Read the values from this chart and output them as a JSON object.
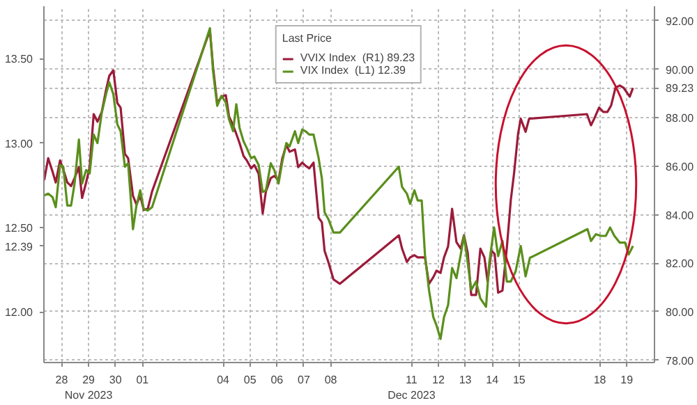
{
  "chart_data": {
    "type": "line",
    "legend_title": "Last Price",
    "legend": "top",
    "grid": true,
    "line_style": "solid",
    "marker": "none",
    "xlim": [
      "2023-11-27T20:10",
      "2023-12-20T12:43"
    ],
    "xticks": [
      {
        "value": "2023-11-28T12:00",
        "label": "28"
      },
      {
        "value": "2023-11-29T12:00",
        "label": "29\nNov 2023"
      },
      {
        "value": "2023-11-30T12:00",
        "label": "30"
      },
      {
        "value": "2023-12-01T12:00",
        "label": "01"
      },
      {
        "value": "2023-12-04T12:00",
        "label": "04"
      },
      {
        "value": "2023-12-05T12:00",
        "label": "05"
      },
      {
        "value": "2023-12-06T12:00",
        "label": "06"
      },
      {
        "value": "2023-12-07T12:00",
        "label": "07"
      },
      {
        "value": "2023-12-08T12:00",
        "label": "08"
      },
      {
        "value": "2023-12-11T12:00",
        "label": "11\nDec 2023"
      },
      {
        "value": "2023-12-12T12:00",
        "label": "12"
      },
      {
        "value": "2023-12-13T12:00",
        "label": "13"
      },
      {
        "value": "2023-12-14T12:00",
        "label": "14"
      },
      {
        "value": "2023-12-15T12:00",
        "label": "15"
      },
      {
        "value": "2023-12-18T12:00",
        "label": "18"
      },
      {
        "value": "2023-12-19T12:00",
        "label": "19"
      }
    ],
    "ylim": [
      11.7,
      13.81
    ],
    "yticks": [
      {
        "value": 12,
        "label": "12.00"
      },
      {
        "value": 12.39,
        "label": "12.39"
      },
      {
        "value": 12.5,
        "label": "12.50"
      },
      {
        "value": 13,
        "label": "13.00"
      },
      {
        "value": 13.5,
        "label": "13.50"
      }
    ],
    "y2lim": [
      77.9,
      92.6
    ],
    "y2ticks": [
      {
        "value": 78,
        "label": "78.00"
      },
      {
        "value": 80,
        "label": "80.00"
      },
      {
        "value": 82,
        "label": "82.00"
      },
      {
        "value": 84,
        "label": "84.00"
      },
      {
        "value": 86,
        "label": "86.00"
      },
      {
        "value": 88,
        "label": "88.00"
      },
      {
        "value": 89.23,
        "label": "89.23"
      },
      {
        "value": 90,
        "label": "90.00"
      },
      {
        "value": 92,
        "label": "92.00"
      }
    ],
    "series": [
      {
        "name": "VVIX Index  (R1) 89.23",
        "color": "#9b1b3a",
        "axis": "y2",
        "x": [
          "2023-11-27T20:24",
          "2023-11-28T00:00",
          "2023-11-28T03:50",
          "2023-11-28T06:43",
          "2023-11-28T10:34",
          "2023-11-28T13:26",
          "2023-11-28T17:02",
          "2023-11-28T20:24",
          "2023-11-28T23:31",
          "2023-11-29T03:22",
          "2023-11-29T06:14",
          "2023-11-29T09:50",
          "2023-11-29T12:58",
          "2023-11-29T16:34",
          "2023-11-29T19:55",
          "2023-11-29T23:46",
          "2023-11-30T03:36",
          "2023-11-30T06:29",
          "2023-11-30T10:05",
          "2023-11-30T13:41",
          "2023-11-30T16:34",
          "2023-11-30T20:24",
          "2023-11-30T23:17",
          "2023-12-01T03:36",
          "2023-12-01T06:43",
          "2023-12-01T10:05",
          "2023-12-01T13:12",
          "2023-12-01T16:48",
          "2023-12-01T20:38",
          "2023-12-04T00:14",
          "2023-12-04T03:07",
          "2023-12-04T06:43",
          "2023-12-04T10:34",
          "2023-12-04T14:24",
          "2023-12-04T17:17",
          "2023-12-04T20:53",
          "2023-12-04T23:46",
          "2023-12-05T02:38",
          "2023-12-05T06:14",
          "2023-12-05T09:07",
          "2023-12-05T12:58",
          "2023-12-05T15:50",
          "2023-12-05T19:41",
          "2023-12-05T23:17",
          "2023-12-06T02:10",
          "2023-12-06T06:29",
          "2023-12-06T09:36",
          "2023-12-06T13:26",
          "2023-12-06T16:48",
          "2023-12-06T20:24",
          "2023-12-06T23:17",
          "2023-12-07T04:05",
          "2023-12-07T06:58",
          "2023-12-07T10:34",
          "2023-12-07T13:26",
          "2023-12-07T16:48",
          "2023-12-07T20:38",
          "2023-12-08T01:12",
          "2023-12-08T04:05",
          "2023-12-08T06:29",
          "2023-12-08T09:50",
          "2023-12-08T14:24",
          "2023-12-08T20:10",
          "2023-12-11T00:43",
          "2023-12-11T03:36",
          "2023-12-11T07:55",
          "2023-12-11T10:48",
          "2023-12-11T14:38",
          "2023-12-11T17:31",
          "2023-12-11T21:07",
          "2023-12-12T00:00",
          "2023-12-12T03:36",
          "2023-12-12T07:26",
          "2023-12-12T10:19",
          "2023-12-12T13:55",
          "2023-12-12T17:02",
          "2023-12-12T20:38",
          "2023-12-13T00:14",
          "2023-12-13T04:05",
          "2023-12-13T07:55",
          "2023-12-13T10:48",
          "2023-12-13T14:10",
          "2023-12-13T17:17",
          "2023-12-13T21:36",
          "2023-12-14T01:26",
          "2023-12-14T05:02",
          "2023-12-14T07:55",
          "2023-12-14T11:17",
          "2023-12-14T14:10",
          "2023-12-14T17:17",
          "2023-12-14T21:07",
          "2023-12-15T00:58",
          "2023-12-15T04:34",
          "2023-12-15T07:26",
          "2023-12-15T11:02",
          "2023-12-15T13:26",
          "2023-12-15T17:46",
          "2023-12-15T20:53",
          "2023-12-18T00:29",
          "2023-12-18T04:05",
          "2023-12-18T06:58",
          "2023-12-18T11:17",
          "2023-12-18T15:07",
          "2023-12-18T18:43",
          "2023-12-18T22:05",
          "2023-12-19T01:55",
          "2023-12-19T05:46",
          "2023-12-19T09:07",
          "2023-12-19T14:38",
          "2023-12-19T17:31"
        ],
        "values": [
          85.42,
          86.33,
          85.78,
          85.33,
          86.24,
          85.87,
          85.33,
          85.18,
          85.51,
          85.96,
          84.69,
          85.33,
          85.96,
          88.15,
          87.84,
          88.24,
          89.15,
          89.73,
          89.96,
          88.6,
          88.42,
          86.51,
          86.33,
          84.78,
          84.42,
          84.78,
          84.2,
          84.24,
          84.96,
          91.6,
          90.05,
          88.6,
          88.87,
          88.93,
          88.05,
          87.69,
          87.33,
          86.96,
          86.42,
          86.24,
          85.91,
          86.05,
          85.69,
          84.05,
          84.96,
          85.51,
          85.6,
          85.42,
          86.33,
          86.87,
          86.6,
          86.69,
          85.96,
          86.15,
          86.02,
          85.91,
          86.15,
          83.87,
          83.69,
          82.51,
          82.05,
          81.33,
          81.15,
          83.15,
          82.6,
          82.05,
          82.24,
          82.33,
          82.24,
          82.24,
          82.24,
          81.15,
          81.42,
          81.69,
          81.6,
          82.24,
          82.69,
          84.24,
          82.87,
          82.6,
          83.15,
          82.42,
          80.69,
          80.69,
          82.6,
          82.24,
          81.24,
          82.51,
          82.38,
          80.78,
          80.87,
          82.6,
          84.6,
          85.69,
          87.33,
          87.96,
          87.42,
          87.96,
          88.15,
          87.69,
          87.96,
          88.42,
          88.24,
          88.24,
          88.51,
          89.24,
          89.33,
          89.24,
          88.87,
          89.23
        ]
      },
      {
        "name": "VIX Index  (L1) 12.39",
        "color": "#5a8f1c",
        "x": [
          "2023-11-27T20:24",
          "2023-11-28T00:00",
          "2023-11-28T03:50",
          "2023-11-28T06:43",
          "2023-11-28T10:34",
          "2023-11-28T13:26",
          "2023-11-28T17:02",
          "2023-11-28T20:24",
          "2023-11-28T23:31",
          "2023-11-29T03:22",
          "2023-11-29T06:14",
          "2023-11-29T09:50",
          "2023-11-29T12:58",
          "2023-11-29T16:34",
          "2023-11-29T19:55",
          "2023-11-29T23:46",
          "2023-11-30T03:36",
          "2023-11-30T06:29",
          "2023-11-30T10:05",
          "2023-11-30T13:41",
          "2023-11-30T16:34",
          "2023-11-30T20:24",
          "2023-11-30T23:17",
          "2023-12-01T03:36",
          "2023-12-01T06:43",
          "2023-12-01T10:05",
          "2023-12-01T13:12",
          "2023-12-01T16:48",
          "2023-12-01T20:38",
          "2023-12-04T00:14",
          "2023-12-04T03:07",
          "2023-12-04T06:43",
          "2023-12-04T10:34",
          "2023-12-04T14:24",
          "2023-12-04T17:17",
          "2023-12-04T20:53",
          "2023-12-04T23:46",
          "2023-12-05T02:38",
          "2023-12-05T06:14",
          "2023-12-05T09:07",
          "2023-12-05T12:58",
          "2023-12-05T15:50",
          "2023-12-05T19:41",
          "2023-12-05T23:17",
          "2023-12-06T02:10",
          "2023-12-06T06:29",
          "2023-12-06T09:36",
          "2023-12-06T13:26",
          "2023-12-06T16:48",
          "2023-12-06T20:24",
          "2023-12-06T23:17",
          "2023-12-07T04:05",
          "2023-12-07T06:58",
          "2023-12-07T10:34",
          "2023-12-07T13:26",
          "2023-12-07T16:48",
          "2023-12-07T20:38",
          "2023-12-08T01:12",
          "2023-12-08T04:05",
          "2023-12-08T06:29",
          "2023-12-08T09:50",
          "2023-12-08T14:24",
          "2023-12-08T20:10",
          "2023-12-11T00:43",
          "2023-12-11T03:36",
          "2023-12-11T07:55",
          "2023-12-11T10:48",
          "2023-12-11T14:38",
          "2023-12-11T17:31",
          "2023-12-11T21:07",
          "2023-12-12T00:00",
          "2023-12-12T03:36",
          "2023-12-12T07:26",
          "2023-12-12T10:19",
          "2023-12-12T13:55",
          "2023-12-12T17:02",
          "2023-12-12T20:38",
          "2023-12-13T00:14",
          "2023-12-13T04:05",
          "2023-12-13T07:55",
          "2023-12-13T10:48",
          "2023-12-13T14:10",
          "2023-12-13T17:17",
          "2023-12-13T21:36",
          "2023-12-14T01:26",
          "2023-12-14T06:29",
          "2023-12-14T09:22",
          "2023-12-14T13:41",
          "2023-12-14T17:17",
          "2023-12-14T21:07",
          "2023-12-15T00:58",
          "2023-12-15T04:34",
          "2023-12-15T08:53",
          "2023-12-15T13:26",
          "2023-12-15T17:46",
          "2023-12-15T21:36",
          "2023-12-18T00:58",
          "2023-12-18T04:05",
          "2023-12-18T08:24",
          "2023-12-18T12:43",
          "2023-12-18T17:17",
          "2023-12-18T21:07",
          "2023-12-19T00:58",
          "2023-12-19T05:46",
          "2023-12-19T10:34",
          "2023-12-19T13:41",
          "2023-12-19T17:31"
        ],
        "values": [
          12.69,
          12.7,
          12.68,
          12.62,
          12.87,
          12.86,
          12.63,
          12.63,
          12.76,
          13.02,
          12.76,
          12.84,
          12.82,
          13.05,
          13.0,
          13.18,
          13.29,
          13.36,
          13.29,
          13.11,
          13.07,
          12.86,
          12.88,
          12.49,
          12.63,
          12.72,
          12.61,
          12.6,
          12.62,
          13.68,
          13.42,
          13.22,
          13.28,
          13.24,
          13.14,
          13.07,
          13.23,
          13.09,
          13.01,
          12.97,
          12.91,
          12.92,
          12.87,
          12.71,
          12.72,
          12.88,
          12.84,
          12.76,
          12.89,
          13.0,
          12.98,
          13.07,
          13.0,
          13.08,
          13.07,
          13.05,
          13.05,
          12.91,
          12.79,
          12.59,
          12.55,
          12.47,
          12.47,
          12.86,
          12.74,
          12.7,
          12.64,
          12.72,
          12.66,
          12.66,
          12.34,
          12.13,
          11.97,
          11.92,
          11.84,
          11.97,
          12.04,
          12.26,
          12.2,
          12.34,
          12.45,
          12.29,
          12.13,
          12.18,
          12.08,
          12.03,
          12.29,
          12.5,
          12.33,
          12.42,
          12.18,
          12.18,
          12.24,
          12.39,
          12.21,
          12.32,
          12.49,
          12.42,
          12.46,
          12.45,
          12.45,
          12.5,
          12.45,
          12.41,
          12.41,
          12.34,
          12.39
        ]
      }
    ]
  }
}
